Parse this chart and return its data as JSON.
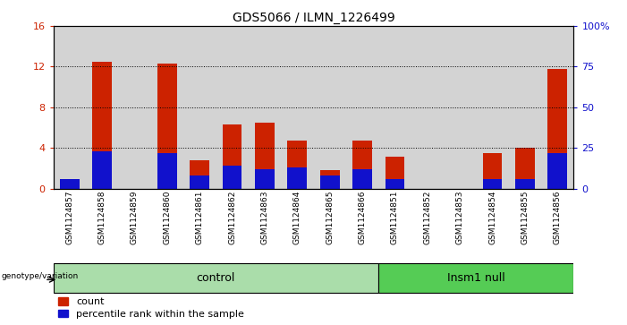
{
  "title": "GDS5066 / ILMN_1226499",
  "samples": [
    "GSM1124857",
    "GSM1124858",
    "GSM1124859",
    "GSM1124860",
    "GSM1124861",
    "GSM1124862",
    "GSM1124863",
    "GSM1124864",
    "GSM1124865",
    "GSM1124866",
    "GSM1124851",
    "GSM1124852",
    "GSM1124853",
    "GSM1124854",
    "GSM1124855",
    "GSM1124856"
  ],
  "count_values": [
    0.2,
    12.5,
    0.0,
    12.3,
    2.8,
    6.3,
    6.5,
    4.7,
    1.8,
    4.7,
    3.1,
    0.0,
    0.0,
    3.5,
    4.0,
    11.8
  ],
  "percentile_values": [
    6,
    23,
    0,
    22,
    8,
    14,
    12,
    13,
    8,
    12,
    6,
    0,
    0,
    6,
    6,
    22
  ],
  "ylim_left": [
    0,
    16
  ],
  "ylim_right": [
    0,
    100
  ],
  "yticks_left": [
    0,
    4,
    8,
    12,
    16
  ],
  "yticks_right": [
    0,
    25,
    50,
    75,
    100
  ],
  "ytick_labels_right": [
    "0",
    "25",
    "50",
    "75",
    "100%"
  ],
  "bar_color_red": "#cc2200",
  "bar_color_blue": "#1111cc",
  "bg_color_columns": "#d3d3d3",
  "control_bg": "#aaddaa",
  "insm1_bg": "#55cc55",
  "legend_label_count": "count",
  "legend_label_percentile": "percentile rank within the sample",
  "genotype_label": "genotype/variation",
  "control_label": "control",
  "insm1_label": "Insm1 null",
  "bar_width": 0.6,
  "n_control": 10,
  "n_insm1": 6
}
